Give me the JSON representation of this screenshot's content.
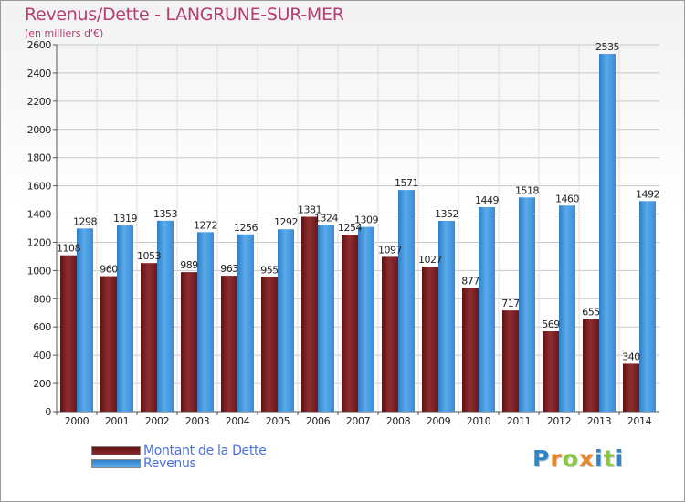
{
  "chart_data": {
    "type": "bar",
    "title": "Revenus/Dette - LANGRUNE-SUR-MER",
    "subtitle": "(en milliers d'€)",
    "categories": [
      "2000",
      "2001",
      "2002",
      "2003",
      "2004",
      "2005",
      "2006",
      "2007",
      "2008",
      "2009",
      "2010",
      "2011",
      "2012",
      "2013",
      "2014"
    ],
    "series": [
      {
        "name": "Montant de la Dette",
        "color": "#8b2a2d",
        "values": [
          1108,
          960,
          1053,
          989,
          963,
          955,
          1381,
          1254,
          1097,
          1027,
          877,
          717,
          569,
          655,
          340
        ],
        "labels": [
          "1108",
          "960",
          "1053",
          "989",
          "963",
          "955",
          "1381",
          "1254",
          "1097",
          "1027",
          "877",
          "717",
          "569",
          "655",
          "340"
        ]
      },
      {
        "name": "Revenus",
        "color": "#4f9ee0",
        "values": [
          1298,
          1319,
          1353,
          1272,
          1256,
          1292,
          1324,
          1309,
          1571,
          1352,
          1449,
          1518,
          1460,
          2535,
          1492
        ],
        "labels": [
          "1298",
          "1319",
          "1353",
          "1272",
          "1256",
          "1292",
          "1324",
          "1309",
          "1571",
          "1352",
          "1449",
          "1518",
          "1460",
          "2535",
          "1492"
        ]
      }
    ],
    "yticks": [
      0,
      200,
      400,
      600,
      800,
      1000,
      1200,
      1400,
      1600,
      1800,
      2000,
      2200,
      2400,
      2600
    ],
    "ylim": [
      0,
      2600
    ],
    "grid": true,
    "legend_position": "bottom-left"
  },
  "logo": {
    "letters": [
      "P",
      "r",
      "o",
      "x",
      "i",
      "t",
      "i"
    ],
    "colors": [
      "#2e86c9",
      "#e8852a",
      "#8cc63f",
      "#e8852a",
      "#2e86c9",
      "#8cc63f",
      "#2e86c9"
    ]
  }
}
